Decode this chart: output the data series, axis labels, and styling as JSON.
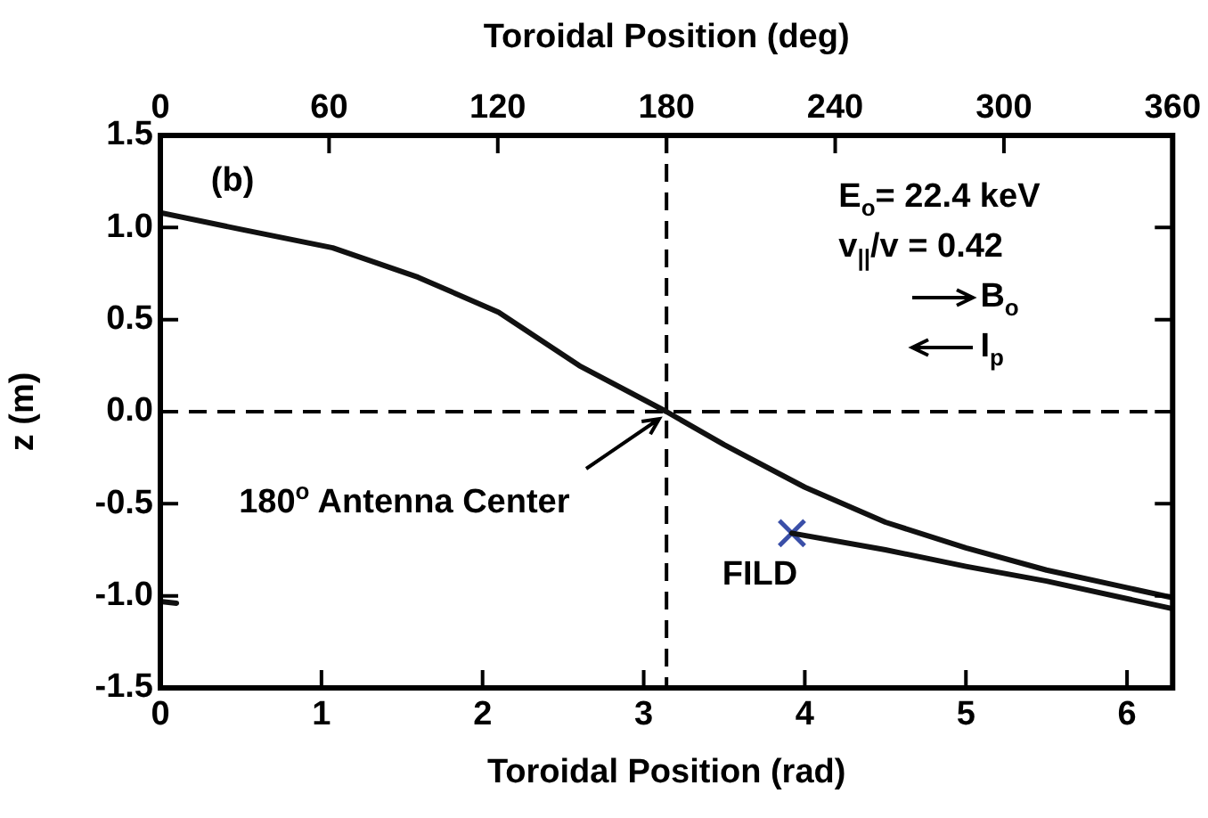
{
  "chart_data": {
    "type": "line",
    "xlabel": "Toroidal Position (rad)",
    "x2label": "Toroidal Position (deg)",
    "ylabel": "z (m)",
    "xlim": [
      0,
      6.283
    ],
    "xticks": [
      0,
      1,
      2,
      3,
      4,
      5,
      6
    ],
    "x2lim": [
      0,
      360
    ],
    "x2ticks": [
      0,
      60,
      120,
      180,
      240,
      300,
      360
    ],
    "ylim": [
      -1.5,
      1.5
    ],
    "yticks": [
      {
        "value": -1.5,
        "label": "-1.5"
      },
      {
        "value": -1,
        "label": "-1.0"
      },
      {
        "value": -0.5,
        "label": "-0.5"
      },
      {
        "value": 0,
        "label": "0.0"
      },
      0.5,
      {
        "value": 1,
        "label": "1.0"
      },
      1.5
    ],
    "grid": false,
    "legend": false,
    "line_style": "solid",
    "series": [
      {
        "color": "#111111",
        "x": [
          0,
          0.5,
          1.07,
          1.6,
          2.1,
          2.6,
          3.1416,
          3.5,
          4,
          4.5,
          5,
          5.5,
          6.283
        ],
        "values": [
          1.08,
          0.99,
          0.89,
          0.73,
          0.54,
          0.25,
          0,
          -0.18,
          -0.41,
          -0.6,
          -0.74,
          -0.86,
          -1.01
        ]
      },
      {
        "color": "#111111",
        "x": [
          3.92,
          4.5,
          5,
          5.5,
          6.283
        ],
        "values": [
          -0.66,
          -0.75,
          -0.84,
          -0.92,
          -1.07
        ]
      },
      {
        "color": "#111111",
        "x": [
          0,
          0.1
        ],
        "values": [
          -1.03,
          -1.04
        ]
      },
      {
        "type": "scatter",
        "name": "FILD",
        "color": "#3a4fa8",
        "marker": "cross",
        "x": [
          3.92
        ],
        "values": [
          -0.66
        ]
      }
    ],
    "ref_lines": [
      {
        "axis": "x",
        "value": 3.1416,
        "line_style": "dashed"
      },
      {
        "axis": "y",
        "value": 0,
        "line_style": "dashed"
      }
    ],
    "annotations": [
      "(b)",
      "E$_{o}$= 22.4 keV",
      "v$_{||}$/v = 0.42",
      "B$_{o}$",
      "I$_{p}$",
      {
        "text": "180$^{o}$ Antenna Center",
        "x": 3.1416,
        "y": 0
      }
    ]
  }
}
